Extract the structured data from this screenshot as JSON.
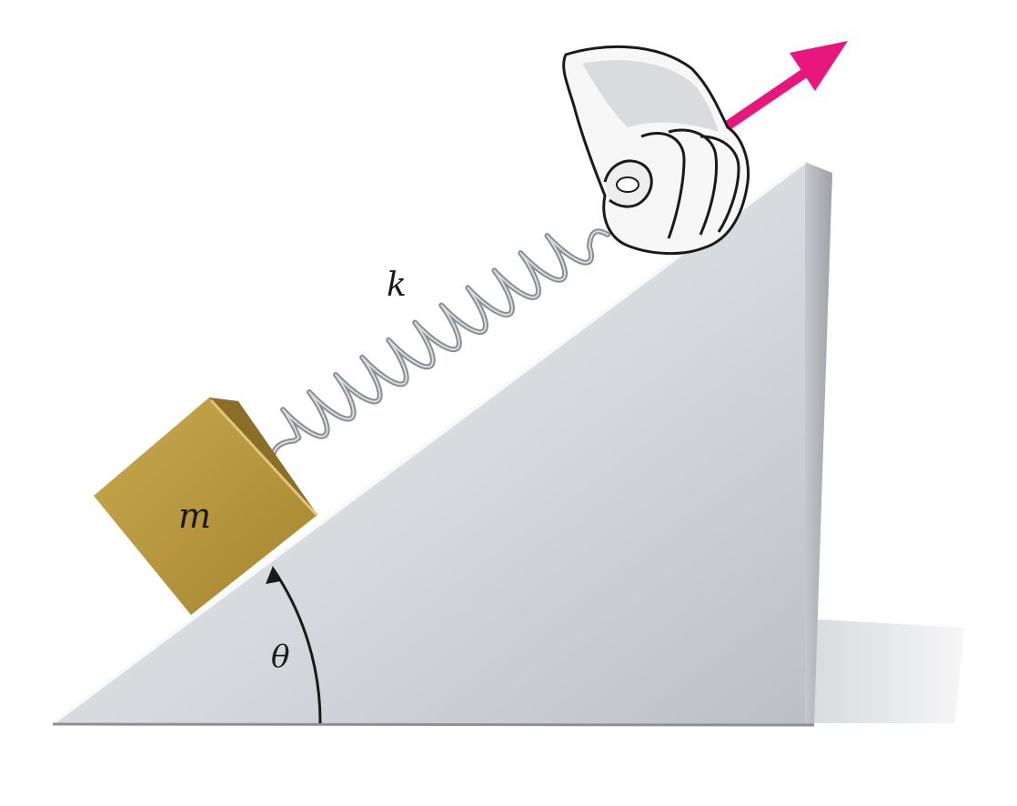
{
  "labels": {
    "mass": "m",
    "spring_constant": "k",
    "angle": "θ"
  },
  "colors": {
    "force_arrow": "#e8177e",
    "block_face": "#b6953f",
    "block_top": "#d2b462",
    "block_side": "#8e712a",
    "incline_face": "#d4d7db",
    "incline_side": "#a9adb2",
    "spring": "#8a8e92",
    "shadow": "#e4e5e7"
  },
  "icons": {
    "hand": "hand-icon",
    "force": "arrow-icon"
  }
}
